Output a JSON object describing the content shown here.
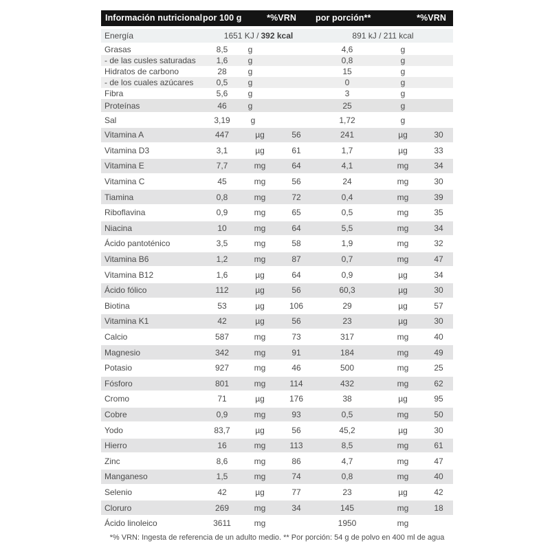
{
  "header": {
    "title": "Información nutricional",
    "per_100g": "por 100 g",
    "vrn_left": "*%VRN",
    "per_portion": "por porción**",
    "vrn_right": "*%VRN"
  },
  "energy": {
    "label": "Energía",
    "per100_prefix": "1651 KJ /",
    "per100_bold": "392 kcal",
    "per_portion": "891 kJ / 211 kcal"
  },
  "macros": [
    {
      "label": "Grasas",
      "v1": "8,5",
      "u1": "g",
      "v2": "4,6",
      "u2": "g",
      "shade": "none"
    },
    {
      "label": "- de las cusles saturadas",
      "v1": "1,6",
      "u1": "g",
      "v2": "0,8",
      "u2": "g",
      "shade": "light"
    },
    {
      "label": "Hidratos de carbono",
      "v1": "28",
      "u1": "g",
      "v2": "15",
      "u2": "g",
      "shade": "none"
    },
    {
      "label": "- de los cuales azúcares",
      "v1": "0,5",
      "u1": "g",
      "v2": "0",
      "u2": "g",
      "shade": "light"
    },
    {
      "label": "Fibra",
      "v1": "5,6",
      "u1": "g",
      "v2": "3",
      "u2": "g",
      "shade": "none"
    },
    {
      "label": "Proteínas",
      "v1": "46",
      "u1": "g",
      "v2": "25",
      "u2": "g",
      "shade": "gray"
    }
  ],
  "sal": {
    "label": "Sal",
    "v1": "3,19",
    "u1": "g",
    "v2": "1,72",
    "u2": "g"
  },
  "micros": [
    {
      "label": "Vitamina A",
      "v1": "447",
      "u1": "µg",
      "vrn1": "56",
      "v2": "241",
      "u2": "µg",
      "vrn2": "30",
      "shade": "gray"
    },
    {
      "label": "Vitamina D3",
      "v1": "3,1",
      "u1": "µg",
      "vrn1": "61",
      "v2": "1,7",
      "u2": "µg",
      "vrn2": "33",
      "shade": "none"
    },
    {
      "label": "Vitamina E",
      "v1": "7,7",
      "u1": "mg",
      "vrn1": "64",
      "v2": "4,1",
      "u2": "mg",
      "vrn2": "34",
      "shade": "gray"
    },
    {
      "label": "Vitamina C",
      "v1": "45",
      "u1": "mg",
      "vrn1": "56",
      "v2": "24",
      "u2": "mg",
      "vrn2": "30",
      "shade": "none"
    },
    {
      "label": "Tiamina",
      "v1": "0,8",
      "u1": "mg",
      "vrn1": "72",
      "v2": "0,4",
      "u2": "mg",
      "vrn2": "39",
      "shade": "gray"
    },
    {
      "label": "Riboflavina",
      "v1": "0,9",
      "u1": "mg",
      "vrn1": "65",
      "v2": "0,5",
      "u2": "mg",
      "vrn2": "35",
      "shade": "none"
    },
    {
      "label": "Niacina",
      "v1": "10",
      "u1": "mg",
      "vrn1": "64",
      "v2": "5,5",
      "u2": "mg",
      "vrn2": "34",
      "shade": "gray"
    },
    {
      "label": "Ácido pantoténico",
      "v1": "3,5",
      "u1": "mg",
      "vrn1": "58",
      "v2": "1,9",
      "u2": "mg",
      "vrn2": "32",
      "shade": "none"
    },
    {
      "label": "Vitamina B6",
      "v1": "1,2",
      "u1": "mg",
      "vrn1": "87",
      "v2": "0,7",
      "u2": "mg",
      "vrn2": "47",
      "shade": "gray"
    },
    {
      "label": "Vitamina B12",
      "v1": "1,6",
      "u1": "µg",
      "vrn1": "64",
      "v2": "0,9",
      "u2": "µg",
      "vrn2": "34",
      "shade": "none"
    },
    {
      "label": "Ácido fólico",
      "v1": "112",
      "u1": "µg",
      "vrn1": "56",
      "v2": "60,3",
      "u2": "µg",
      "vrn2": "30",
      "shade": "gray"
    },
    {
      "label": "Biotina",
      "v1": "53",
      "u1": "µg",
      "vrn1": "106",
      "v2": "29",
      "u2": "µg",
      "vrn2": "57",
      "shade": "none"
    },
    {
      "label": "Vitamina K1",
      "v1": "42",
      "u1": "µg",
      "vrn1": "56",
      "v2": "23",
      "u2": "µg",
      "vrn2": "30",
      "shade": "gray"
    },
    {
      "label": "Calcio",
      "v1": "587",
      "u1": "mg",
      "vrn1": "73",
      "v2": "317",
      "u2": "mg",
      "vrn2": "40",
      "shade": "none"
    },
    {
      "label": "Magnesio",
      "v1": "342",
      "u1": "mg",
      "vrn1": "91",
      "v2": "184",
      "u2": "mg",
      "vrn2": "49",
      "shade": "gray"
    },
    {
      "label": "Potasio",
      "v1": "927",
      "u1": "mg",
      "vrn1": "46",
      "v2": "500",
      "u2": "mg",
      "vrn2": "25",
      "shade": "none"
    },
    {
      "label": "Fósforo",
      "v1": "801",
      "u1": "mg",
      "vrn1": "114",
      "v2": "432",
      "u2": "mg",
      "vrn2": "62",
      "shade": "gray"
    },
    {
      "label": "Cromo",
      "v1": "71",
      "u1": "µg",
      "vrn1": "176",
      "v2": "38",
      "u2": "µg",
      "vrn2": "95",
      "shade": "none"
    },
    {
      "label": "Cobre",
      "v1": "0,9",
      "u1": "mg",
      "vrn1": "93",
      "v2": "0,5",
      "u2": "mg",
      "vrn2": "50",
      "shade": "gray"
    },
    {
      "label": "Yodo",
      "v1": "83,7",
      "u1": "µg",
      "vrn1": "56",
      "v2": "45,2",
      "u2": "µg",
      "vrn2": "30",
      "shade": "none"
    },
    {
      "label": "Hierro",
      "v1": "16",
      "u1": "mg",
      "vrn1": "113",
      "v2": "8,5",
      "u2": "mg",
      "vrn2": "61",
      "shade": "gray"
    },
    {
      "label": "Zinc",
      "v1": "8,6",
      "u1": "mg",
      "vrn1": "86",
      "v2": "4,7",
      "u2": "mg",
      "vrn2": "47",
      "shade": "none"
    },
    {
      "label": "Manganeso",
      "v1": "1,5",
      "u1": "mg",
      "vrn1": "74",
      "v2": "0,8",
      "u2": "mg",
      "vrn2": "40",
      "shade": "gray"
    },
    {
      "label": "Selenio",
      "v1": "42",
      "u1": "µg",
      "vrn1": "77",
      "v2": "23",
      "u2": "µg",
      "vrn2": "42",
      "shade": "none"
    },
    {
      "label": "Cloruro",
      "v1": "269",
      "u1": "mg",
      "vrn1": "34",
      "v2": "145",
      "u2": "mg",
      "vrn2": "18",
      "shade": "gray"
    },
    {
      "label": "Ácido linoleico",
      "v1": "3611",
      "u1": "mg",
      "vrn1": "",
      "v2": "1950",
      "u2": "mg",
      "vrn2": "",
      "shade": "none"
    }
  ],
  "footnote": "*% VRN: Ingesta de referencia de un adulto medio.  ** Por porción: 54 g de polvo en 400 ml de agua",
  "colors": {
    "header_bg": "#141414",
    "header_text": "#ffffff",
    "energy_row_bg": "#eef1f2",
    "row_shade_gray": "#e3e3e4",
    "row_shade_light": "#eeeeee",
    "text": "#4a4a4a"
  }
}
